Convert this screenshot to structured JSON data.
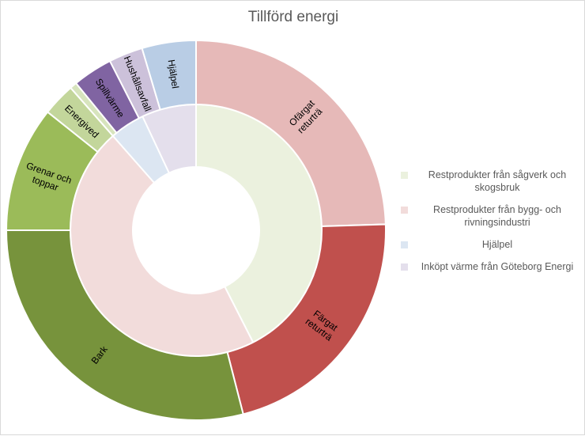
{
  "chart_data": {
    "type": "pie",
    "title": "Tillförd energi",
    "inner_ring": {
      "series": [
        {
          "name": "Restprodukter från sågverk och skogsbruk",
          "value": 42.5,
          "color": "#ebf1de"
        },
        {
          "name": "Restprodukter från bygg- och rivningsindustri",
          "value": 46.0,
          "color": "#f2dcdb"
        },
        {
          "name": "Hjälpel",
          "value": 4.5,
          "color": "#dce6f2"
        },
        {
          "name": "Inköpt värme från Göteborg Energi",
          "value": 7.0,
          "color": "#e4dfec"
        }
      ]
    },
    "outer_ring": {
      "slices": [
        {
          "label": "Ofärgat returträ",
          "value": 24.5,
          "color": "#e6b9b8",
          "label_lines": [
            "Ofärgat",
            "returträ"
          ]
        },
        {
          "label": "Färgat returträ",
          "value": 21.5,
          "color": "#c0504d",
          "label_lines": [
            "Färgat",
            "returträ"
          ]
        },
        {
          "label": "Bark",
          "value": 29.0,
          "color": "#77933c",
          "label_lines": [
            "Bark"
          ]
        },
        {
          "label": "Grenar och toppar",
          "value": 10.7,
          "color": "#9bbb59",
          "label_lines": [
            "Grenar och",
            "toppar"
          ]
        },
        {
          "label": "Energived",
          "value": 2.8,
          "color": "#c3d69b",
          "label_lines": [
            "Energived"
          ]
        },
        {
          "label": "",
          "value": 0.6,
          "color": "#d7e4bd",
          "label_lines": []
        },
        {
          "label": "Spillvärme",
          "value": 3.4,
          "color": "#8064a2",
          "label_lines": [
            "Spillvärme"
          ]
        },
        {
          "label": "Hushållsavfall",
          "value": 2.9,
          "color": "#ccc1da",
          "label_lines": [
            "Hushållsavfall"
          ]
        },
        {
          "label": "Hjälpel",
          "value": 4.6,
          "color": "#b9cde5",
          "label_lines": [
            "Hjälpel"
          ]
        }
      ]
    },
    "legend": {
      "position": "right",
      "items": [
        {
          "label": "Restprodukter från sågverk och skogsbruk",
          "color": "#ebf1de"
        },
        {
          "label": "Restprodukter från bygg- och rivningsindustri",
          "color": "#f2dcdb"
        },
        {
          "label": "Hjälpel",
          "color": "#dce6f2"
        },
        {
          "label": "Inköpt värme från Göteborg Energi",
          "color": "#e4dfec"
        }
      ]
    }
  }
}
